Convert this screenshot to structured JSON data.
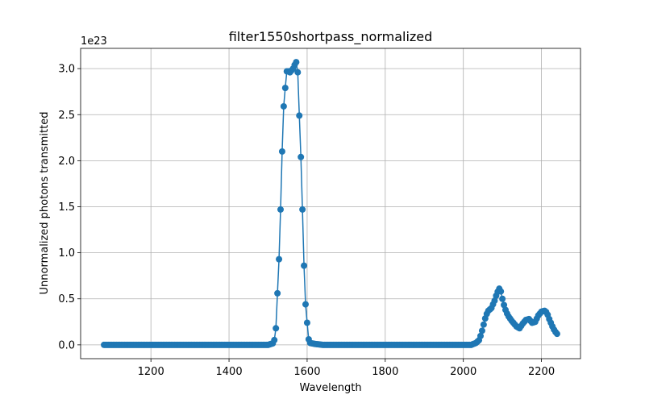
{
  "chart_data": {
    "type": "line",
    "title": "filter1550shortpass_normalized",
    "xlabel": "Wavelength",
    "ylabel": "Unnormalized photons transmitted",
    "y_offset_label": "1e23",
    "y_scale": 1e+23,
    "xlim": [
      1020,
      2300
    ],
    "ylim": [
      -0.15,
      3.22
    ],
    "xticks": [
      1200,
      1400,
      1600,
      1800,
      2000,
      2200
    ],
    "xtick_labels": [
      "1200",
      "1400",
      "1600",
      "1800",
      "2000",
      "2200"
    ],
    "yticks": [
      0.0,
      0.5,
      1.0,
      1.5,
      2.0,
      2.5,
      3.0
    ],
    "ytick_labels": [
      "0.0",
      "0.5",
      "1.0",
      "1.5",
      "2.0",
      "2.5",
      "3.0"
    ],
    "grid": true,
    "marker": "circle",
    "color": "#1f77b4",
    "x_start": 1080,
    "x_end": 2240,
    "x_step": 4,
    "keypoints": [
      [
        1080,
        0.0
      ],
      [
        1500,
        0.0
      ],
      [
        1515,
        0.02
      ],
      [
        1520,
        0.18
      ],
      [
        1522,
        0.38
      ],
      [
        1524,
        0.56
      ],
      [
        1526,
        0.74
      ],
      [
        1528,
        0.93
      ],
      [
        1530,
        1.16
      ],
      [
        1532,
        1.47
      ],
      [
        1534,
        1.79
      ],
      [
        1536,
        2.1
      ],
      [
        1538,
        2.42
      ],
      [
        1540,
        2.59
      ],
      [
        1542,
        2.68
      ],
      [
        1544,
        2.79
      ],
      [
        1546,
        2.88
      ],
      [
        1548,
        2.97
      ],
      [
        1552,
        2.97
      ],
      [
        1556,
        2.96
      ],
      [
        1560,
        2.98
      ],
      [
        1564,
        3.0
      ],
      [
        1568,
        3.04
      ],
      [
        1572,
        3.07
      ],
      [
        1574,
        3.0
      ],
      [
        1576,
        2.96
      ],
      [
        1578,
        2.72
      ],
      [
        1580,
        2.49
      ],
      [
        1582,
        2.26
      ],
      [
        1584,
        2.04
      ],
      [
        1586,
        1.78
      ],
      [
        1588,
        1.47
      ],
      [
        1590,
        1.16
      ],
      [
        1592,
        0.86
      ],
      [
        1594,
        0.55
      ],
      [
        1596,
        0.44
      ],
      [
        1598,
        0.34
      ],
      [
        1600,
        0.24
      ],
      [
        1602,
        0.15
      ],
      [
        1604,
        0.06
      ],
      [
        1608,
        0.02
      ],
      [
        1620,
        0.01
      ],
      [
        1640,
        0.0
      ],
      [
        2020,
        0.0
      ],
      [
        2032,
        0.02
      ],
      [
        2040,
        0.05
      ],
      [
        2046,
        0.12
      ],
      [
        2052,
        0.22
      ],
      [
        2058,
        0.32
      ],
      [
        2064,
        0.37
      ],
      [
        2072,
        0.4
      ],
      [
        2080,
        0.48
      ],
      [
        2086,
        0.56
      ],
      [
        2092,
        0.61
      ],
      [
        2096,
        0.58
      ],
      [
        2100,
        0.5
      ],
      [
        2106,
        0.4
      ],
      [
        2114,
        0.32
      ],
      [
        2124,
        0.26
      ],
      [
        2136,
        0.2
      ],
      [
        2144,
        0.18
      ],
      [
        2152,
        0.23
      ],
      [
        2160,
        0.27
      ],
      [
        2168,
        0.28
      ],
      [
        2176,
        0.24
      ],
      [
        2184,
        0.25
      ],
      [
        2192,
        0.32
      ],
      [
        2200,
        0.36
      ],
      [
        2208,
        0.37
      ],
      [
        2214,
        0.35
      ],
      [
        2220,
        0.28
      ],
      [
        2228,
        0.2
      ],
      [
        2234,
        0.15
      ],
      [
        2240,
        0.12
      ]
    ]
  }
}
